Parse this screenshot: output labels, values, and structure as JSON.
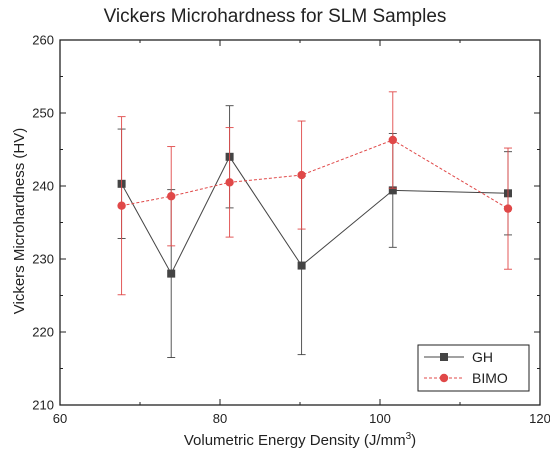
{
  "chart_data": {
    "type": "line",
    "title": "Vickers Microhardness for SLM Samples",
    "xlabel_prefix": "Volumetric Energy Density (J/mm",
    "xlabel_sup": "3",
    "xlabel_suffix": ")",
    "ylabel": "Vickers Microhardness (HV)",
    "xlim": [
      60,
      120
    ],
    "ylim": [
      210,
      260
    ],
    "xticks": [
      60,
      80,
      100,
      120
    ],
    "yticks": [
      210,
      220,
      230,
      240,
      250,
      260
    ],
    "grid": false,
    "legend_position": "bottom-right",
    "series": [
      {
        "name": "GH",
        "color": "#444444",
        "marker": "square",
        "line_style": "solid",
        "x": [
          67.7,
          73.9,
          81.2,
          90.2,
          101.6,
          116.0
        ],
        "y": [
          240.3,
          228.0,
          244.0,
          229.1,
          239.4,
          239.0
        ],
        "yerr": [
          7.5,
          11.5,
          7.0,
          12.2,
          7.8,
          5.7
        ]
      },
      {
        "name": "BIMO",
        "color": "#e04848",
        "marker": "circle",
        "line_style": "dashed",
        "x": [
          67.7,
          73.9,
          81.2,
          90.2,
          101.6,
          116.0
        ],
        "y": [
          237.3,
          238.6,
          240.5,
          241.5,
          246.3,
          236.9
        ],
        "yerr": [
          12.2,
          6.8,
          7.5,
          7.4,
          6.6,
          8.3
        ]
      }
    ]
  }
}
